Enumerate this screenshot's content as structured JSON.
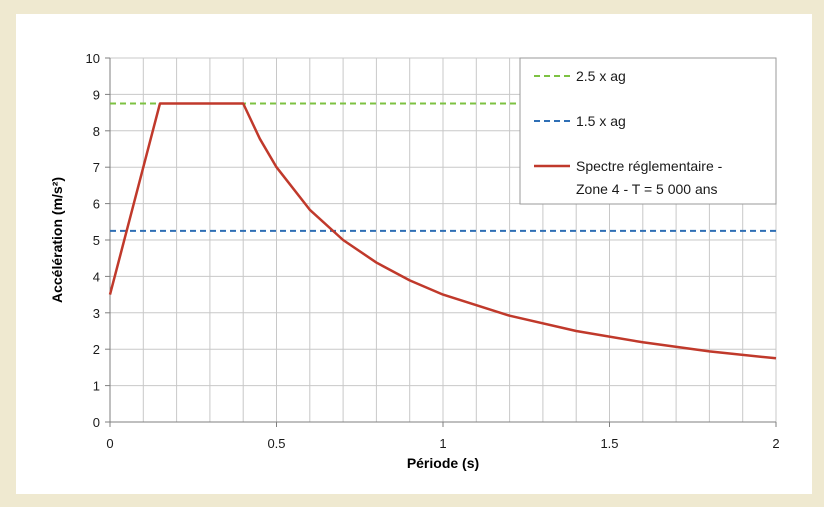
{
  "chart_data": {
    "type": "line",
    "xlabel": "Période (s)",
    "ylabel": "Accélération (m/s²)",
    "xlim": [
      0,
      2
    ],
    "ylim": [
      0,
      10
    ],
    "x_ticks": [
      "0",
      "0.5",
      "1",
      "1.5",
      "2"
    ],
    "y_ticks": [
      "0",
      "1",
      "2",
      "3",
      "4",
      "5",
      "6",
      "7",
      "8",
      "9",
      "10"
    ],
    "grid": true,
    "legend_position": "top-right",
    "series": [
      {
        "name": "2.5 x ag",
        "style": "dashed",
        "color": "#7dc242",
        "points": [
          [
            0,
            8.75
          ],
          [
            2,
            8.75
          ]
        ]
      },
      {
        "name": "1.5 x ag",
        "style": "dashed",
        "color": "#2e6fb5",
        "points": [
          [
            0,
            5.25
          ],
          [
            2,
            5.25
          ]
        ]
      },
      {
        "name": "Spectre réglementaire -\nZone 4 - T = 5 000 ans",
        "style": "solid",
        "color": "#c0392b",
        "points": [
          [
            0,
            3.5
          ],
          [
            0.15,
            8.75
          ],
          [
            0.4,
            8.75
          ],
          [
            0.45,
            7.78
          ],
          [
            0.5,
            7.0
          ],
          [
            0.6,
            5.83
          ],
          [
            0.7,
            5.0
          ],
          [
            0.8,
            4.38
          ],
          [
            0.9,
            3.89
          ],
          [
            1.0,
            3.5
          ],
          [
            1.2,
            2.92
          ],
          [
            1.4,
            2.5
          ],
          [
            1.6,
            2.19
          ],
          [
            1.8,
            1.94
          ],
          [
            2.0,
            1.75
          ]
        ]
      }
    ]
  }
}
